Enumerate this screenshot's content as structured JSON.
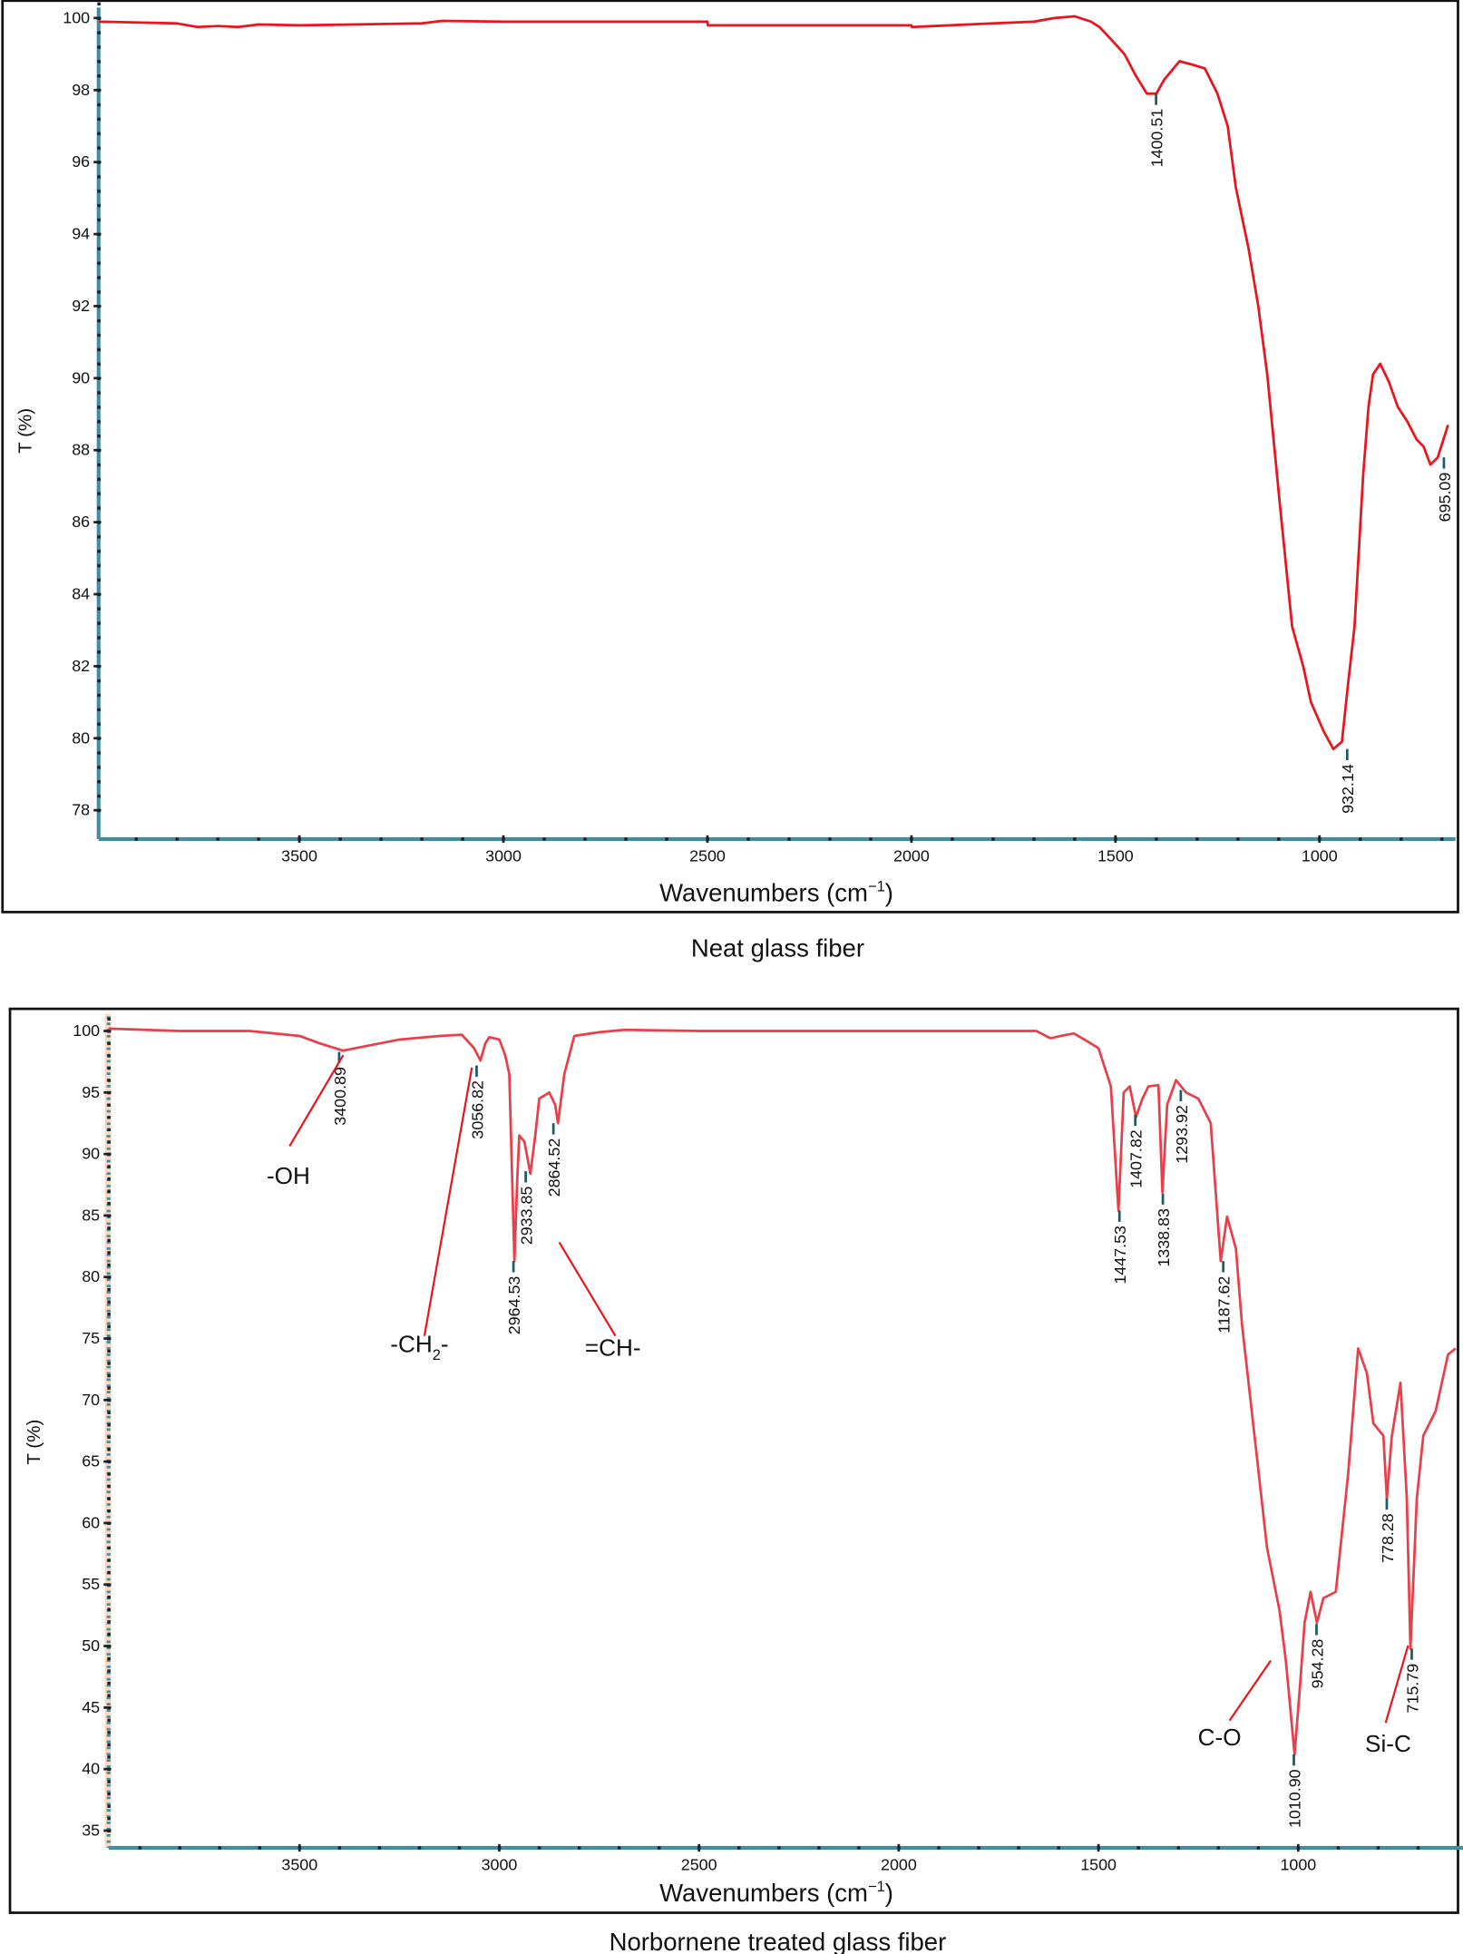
{
  "chart_data": [
    {
      "type": "line",
      "caption": "Neat glass fiber",
      "xlabel": "Wavenumbers (cm⁻¹)",
      "xlabel_base": "Wavenumbers (cm",
      "xlabel_sup": "−1",
      "xlabel_close": ")",
      "ylabel": "T (%)",
      "xlim": [
        3992,
        685
      ],
      "ylim": [
        77.2,
        100.5
      ],
      "x_reversed": true,
      "x_ticks": [
        3500,
        3000,
        2500,
        2000,
        1500,
        1000
      ],
      "y_ticks": [
        78,
        80,
        82,
        84,
        86,
        88,
        90,
        92,
        94,
        96,
        98,
        100
      ],
      "grid": false,
      "line_color": "#e8141e",
      "axis_color": "#3f8ea0",
      "series": [
        {
          "x": [
            3992,
            3900,
            3800,
            3750,
            3700,
            3650,
            3600,
            3500,
            3200,
            3150,
            3000,
            2500,
            2499,
            2000,
            1999,
            1800,
            1700,
            1650,
            1600,
            1560,
            1539,
            1510,
            1478,
            1450,
            1423,
            1400,
            1380,
            1343,
            1310,
            1281,
            1250,
            1225,
            1205,
            1174,
            1150,
            1128,
            1098,
            1067,
            1040,
            1021,
            990,
            966,
            945,
            930,
            914,
            893,
            880,
            869,
            851,
            830,
            808,
            785,
            762,
            745,
            728,
            710,
            685
          ],
          "y": [
            99.9,
            99.88,
            99.85,
            99.75,
            99.78,
            99.75,
            99.82,
            99.8,
            99.85,
            99.92,
            99.9,
            99.9,
            99.8,
            99.8,
            99.75,
            99.85,
            99.9,
            100.0,
            100.05,
            99.9,
            99.75,
            99.4,
            99.0,
            98.4,
            97.9,
            97.9,
            98.3,
            98.8,
            98.7,
            98.6,
            97.9,
            97.0,
            95.3,
            93.6,
            92.0,
            90.1,
            86.6,
            83.1,
            82.0,
            81.0,
            80.2,
            79.7,
            79.9,
            81.5,
            83.1,
            87.3,
            89.2,
            90.1,
            90.4,
            89.9,
            89.2,
            88.8,
            88.3,
            88.1,
            87.6,
            87.8,
            88.7
          ]
        }
      ],
      "peaks": [
        {
          "label": "1400.51",
          "x": 1400.51,
          "y": 97.9
        },
        {
          "label": "932.14",
          "x": 932.14,
          "y": 79.7
        },
        {
          "label": "695.09",
          "x": 695.09,
          "y": 87.8
        }
      ],
      "annotations": []
    },
    {
      "type": "line",
      "caption": "Norbornene treated glass fiber",
      "xlabel": "Wavenumbers (cm⁻¹)",
      "xlabel_base": "Wavenumbers (cm",
      "xlabel_sup": "−1",
      "xlabel_close": ")",
      "ylabel": "T (%)",
      "xlim": [
        3978,
        600
      ],
      "ylim": [
        33.6,
        101.8
      ],
      "x_reversed": true,
      "x_ticks": [
        3500,
        3000,
        2500,
        2000,
        1500,
        1000
      ],
      "y_ticks": [
        35,
        40,
        45,
        50,
        55,
        60,
        65,
        70,
        75,
        80,
        85,
        90,
        95,
        100
      ],
      "grid": false,
      "line_color": "#e8404a",
      "axis_color": "#3f8ea0",
      "axis_band_color": "#f9d9c4",
      "series": [
        {
          "x": [
            3978,
            3800,
            3625,
            3500,
            3450,
            3391,
            3330,
            3250,
            3150,
            3094,
            3063,
            3047,
            3035,
            3025,
            3000,
            2985,
            2975,
            2962,
            2955,
            2950,
            2937,
            2922,
            2910,
            2900,
            2875,
            2860,
            2853,
            2837,
            2812,
            2750,
            2687,
            2500,
            2000,
            1700,
            1656,
            1620,
            1594,
            1562,
            1530,
            1500,
            1469,
            1450,
            1437,
            1422,
            1406,
            1390,
            1375,
            1350,
            1340,
            1328,
            1306,
            1281,
            1250,
            1219,
            1194,
            1178,
            1156,
            1141,
            1109,
            1078,
            1047,
            1031,
            1009,
            995,
            984,
            969,
            953,
            937,
            906,
            875,
            850,
            828,
            812,
            787,
            778,
            766,
            744,
            728,
            719,
            703,
            687,
            656,
            625,
            606
          ],
          "y": [
            100.2,
            100.0,
            100.0,
            99.6,
            99.0,
            98.4,
            98.8,
            99.3,
            99.6,
            99.7,
            98.6,
            97.6,
            99.0,
            99.5,
            99.3,
            98.0,
            96.5,
            81.3,
            88.0,
            91.5,
            91.0,
            88.4,
            91.5,
            94.5,
            95.0,
            94.0,
            92.5,
            96.5,
            99.6,
            99.9,
            100.1,
            100.0,
            100.0,
            100.0,
            100.0,
            99.4,
            99.6,
            99.8,
            99.2,
            98.6,
            95.5,
            85.4,
            95.0,
            95.5,
            93.0,
            94.5,
            95.5,
            95.6,
            86.9,
            94.0,
            96.0,
            95.0,
            94.5,
            92.5,
            81.3,
            84.9,
            82.3,
            76.2,
            67.0,
            58.0,
            52.9,
            48.8,
            41.2,
            47.0,
            51.9,
            54.4,
            51.9,
            53.9,
            54.4,
            64.0,
            74.2,
            72.2,
            68.1,
            67.1,
            62.0,
            67.0,
            71.4,
            62.0,
            49.8,
            62.0,
            67.1,
            69.1,
            73.7,
            74.2
          ]
        }
      ],
      "peaks": [
        {
          "label": "3400.89",
          "x": 3400.89,
          "y": 98.3
        },
        {
          "label": "3056.82",
          "x": 3056.82,
          "y": 97.2
        },
        {
          "label": "2964.53",
          "x": 2964.53,
          "y": 81.3
        },
        {
          "label": "2933.85",
          "x": 2933.85,
          "y": 88.6
        },
        {
          "label": "2864.52",
          "x": 2864.52,
          "y": 92.5
        },
        {
          "label": "1447.53",
          "x": 1447.53,
          "y": 85.4
        },
        {
          "label": "1407.82",
          "x": 1407.82,
          "y": 93.2
        },
        {
          "label": "1338.83",
          "x": 1338.83,
          "y": 86.8
        },
        {
          "label": "1293.92",
          "x": 1293.92,
          "y": 95.2
        },
        {
          "label": "1187.62",
          "x": 1187.62,
          "y": 81.3
        },
        {
          "label": "1010.90",
          "x": 1010.9,
          "y": 41.2
        },
        {
          "label": "954.28",
          "x": 954.28,
          "y": 51.8
        },
        {
          "label": "778.28",
          "x": 778.28,
          "y": 62.0
        },
        {
          "label": "715.79",
          "x": 715.79,
          "y": 49.8
        }
      ],
      "annotations": [
        {
          "label": "-OH"
        },
        {
          "label": "-CH2-",
          "base": "-CH",
          "sub": "2",
          "tail": "-"
        },
        {
          "label": "=CH-"
        },
        {
          "label": "C-O"
        },
        {
          "label": "Si-C"
        }
      ]
    }
  ]
}
